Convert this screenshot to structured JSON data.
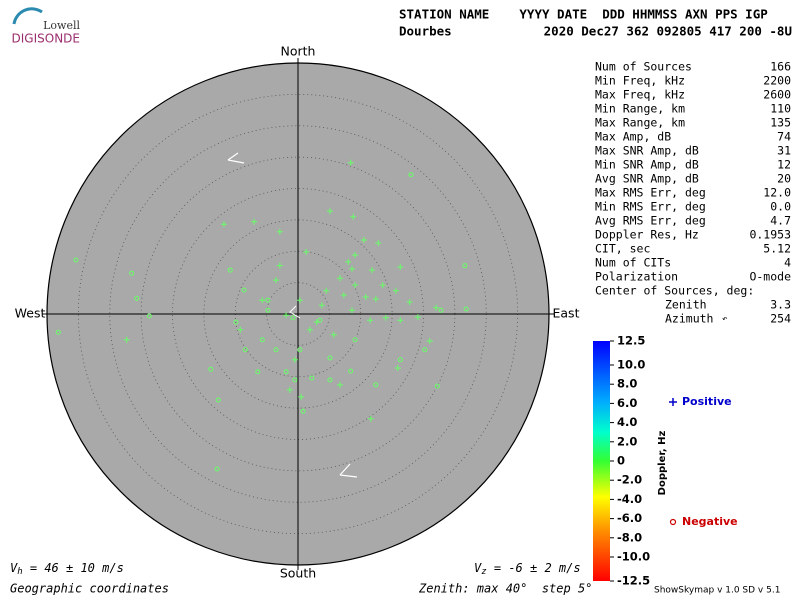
{
  "header": {
    "logo_top": "Lowell",
    "logo_bottom": "DIGISONDE",
    "columns": "STATION NAME    YYYY DATE  DDD HHMMSS AXN PPS IGP",
    "station": "Dourbes",
    "values": "2020 Dec27 362 092805 417 200 -8U"
  },
  "stats": [
    [
      "Num of Sources",
      "166"
    ],
    [
      "Min Freq, kHz",
      "2200"
    ],
    [
      "Max Freq, kHz",
      "2600"
    ],
    [
      "Min Range, km",
      "110"
    ],
    [
      "Max Range, km",
      "135"
    ],
    [
      "Max Amp, dB",
      "74"
    ],
    [
      "Max SNR Amp, dB",
      "31"
    ],
    [
      "Min SNR Amp, dB",
      "12"
    ],
    [
      "Avg SNR Amp, dB",
      "20"
    ],
    [
      "Max RMS Err, deg",
      "12.0"
    ],
    [
      "Min RMS Err, deg",
      "0.0"
    ],
    [
      "Avg RMS Err, deg",
      "4.7"
    ],
    [
      "Doppler Res, Hz",
      "0.1953"
    ],
    [
      "CIT, sec",
      "5.12"
    ],
    [
      "Num of CITs",
      "4"
    ],
    [
      "Polarization",
      "O-mode"
    ],
    [
      "Center of Sources, deg:",
      ""
    ],
    [
      "Zenith",
      "3.3"
    ],
    [
      "Azimuth",
      "254"
    ]
  ],
  "footer": {
    "vh_symbol": "V",
    "vh_sub": "h",
    "vh_text": " = 46 ± 10 m/s",
    "vz_symbol": "V",
    "vz_sub": "z",
    "vz_text": " = -6 ± 2 m/s",
    "coords": "Geographic coordinates",
    "zenith": "Zenith: max 40°  step 5°",
    "version": "ShowSkymap v 1.0   SD v 5.1"
  },
  "chart_data": {
    "type": "scatter",
    "directions": {
      "north": "North",
      "south": "South",
      "east": "East",
      "west": "West"
    },
    "rlim": [
      0,
      40
    ],
    "rticks": [
      5,
      10,
      15,
      20,
      25,
      30,
      35,
      40
    ],
    "colorbar": {
      "label": "Doppler, Hz",
      "lim": [
        -12.5,
        12.5
      ],
      "ticks": [
        12.5,
        {
          "value": 10,
          "label": "10.0"
        },
        {
          "value": 8,
          "label": "8.0"
        },
        {
          "value": 6,
          "label": "6.0"
        },
        {
          "value": 4,
          "label": "4.0"
        },
        {
          "value": 2,
          "label": "2.0"
        },
        0,
        {
          "value": -2,
          "label": "-2.0"
        },
        {
          "value": -4,
          "label": "-4.0"
        },
        {
          "value": -6,
          "label": "-6.0"
        },
        {
          "value": -8,
          "label": "-8.0"
        },
        {
          "value": -10,
          "label": "-10.0"
        },
        -12.5
      ]
    },
    "series": [
      {
        "name": "Positive",
        "marker": "plus",
        "color": "#66ff66",
        "legend_color": "#0000cc",
        "x": [
          8.4,
          5.1,
          8.8,
          -7.0,
          -11.8,
          -2.9,
          10.5,
          12.8,
          1.3,
          9.1,
          8.0,
          8.6,
          16.3,
          11.8,
          6.7,
          9.1,
          13.5,
          15.6,
          4.5,
          7.3,
          10.8,
          12.4,
          17.8,
          22.0,
          3.8,
          0.3,
          3.0,
          1.9,
          5.7,
          8.6,
          14.0,
          16.3,
          11.5,
          -0.5,
          -1.3,
          0.5,
          11.6,
          -27.3,
          -2.9,
          -3.5,
          -5.7,
          -9.2,
          6.7,
          15.9,
          19.1,
          21.0,
          -1.9
        ],
        "values": [
          24.1,
          16.4,
          15.5,
          14.7,
          14.3,
          13.1,
          11.8,
          11.3,
          9.9,
          9.4,
          8.3,
          7.2,
          7.5,
          7.0,
          5.7,
          4.6,
          4.6,
          3.7,
          3.7,
          3.0,
          2.7,
          2.4,
          1.9,
          1.0,
          1.4,
          2.2,
          -1.3,
          -2.5,
          -3.3,
          0.6,
          -0.6,
          -1.0,
          -1.0,
          -7.3,
          -12.1,
          -13.2,
          -16.7,
          -4.1,
          7.7,
          5.4,
          2.2,
          -2.5,
          -11.3,
          -8.6,
          -0.5,
          -4.3,
          -0.2
        ]
      },
      {
        "name": "Negative",
        "marker": "circle",
        "color": "#66ff66",
        "legend_color": "#cc0000",
        "x": [
          18.0,
          -35.4,
          26.6,
          -26.5,
          -25.7,
          -23.7,
          -38.2,
          26.8,
          22.8,
          -8.6,
          -4.8,
          -0.8,
          3.5,
          -9.9,
          -5.7,
          -3.5,
          0.3,
          5.1,
          -6.4,
          -1.9,
          2.2,
          5.1,
          8.4,
          12.4,
          -13.9,
          -12.7,
          -0.5,
          -12.9,
          0.8,
          22.2,
          20.2,
          16.3,
          9.1,
          -10.8,
          -8.4,
          -4.8
        ],
        "values": [
          22.2,
          8.6,
          7.7,
          6.5,
          2.5,
          -0.3,
          -2.9,
          0.8,
          0.6,
          3.8,
          2.2,
          -0.6,
          -1.0,
          -1.3,
          -4.1,
          -5.7,
          -5.7,
          -7.0,
          -9.2,
          -9.2,
          -10.2,
          -10.5,
          -9.1,
          -11.3,
          -8.8,
          -13.7,
          -10.5,
          -24.7,
          -15.5,
          -11.5,
          -5.7,
          -7.3,
          -4.1,
          7.0,
          -5.7,
          0.6
        ]
      }
    ]
  }
}
